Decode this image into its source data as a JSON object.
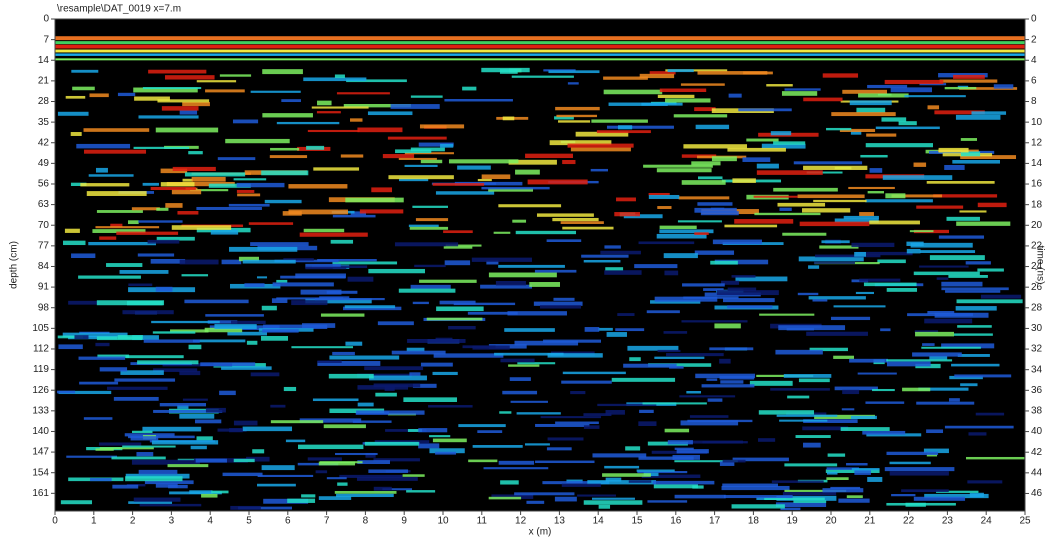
{
  "chart_data": {
    "type": "radargram",
    "title": "\\resample\\DAT_0019   x=7.m",
    "x_label": "x (m)",
    "y_label": "depth (cm)",
    "y2_label": "time (ns)",
    "xlim": [
      0,
      25
    ],
    "xticks": [
      0,
      1,
      2,
      3,
      4,
      5,
      6,
      7,
      8,
      9,
      10,
      11,
      12,
      13,
      14,
      15,
      16,
      17,
      18,
      19,
      20,
      21,
      22,
      23,
      24,
      25
    ],
    "ylim": [
      0,
      167
    ],
    "yticks": [
      0,
      7,
      14,
      21,
      28,
      35,
      42,
      49,
      56,
      63,
      70,
      77,
      84,
      91,
      98,
      105,
      112,
      119,
      126,
      133,
      140,
      147,
      154,
      161
    ],
    "y2lim": [
      0,
      47.7
    ],
    "y2ticks": [
      0,
      2,
      4,
      6,
      8,
      10,
      12,
      14,
      16,
      18,
      20,
      22,
      24,
      26,
      28,
      30,
      32,
      34,
      36,
      38,
      40,
      42,
      44,
      46
    ]
  }
}
